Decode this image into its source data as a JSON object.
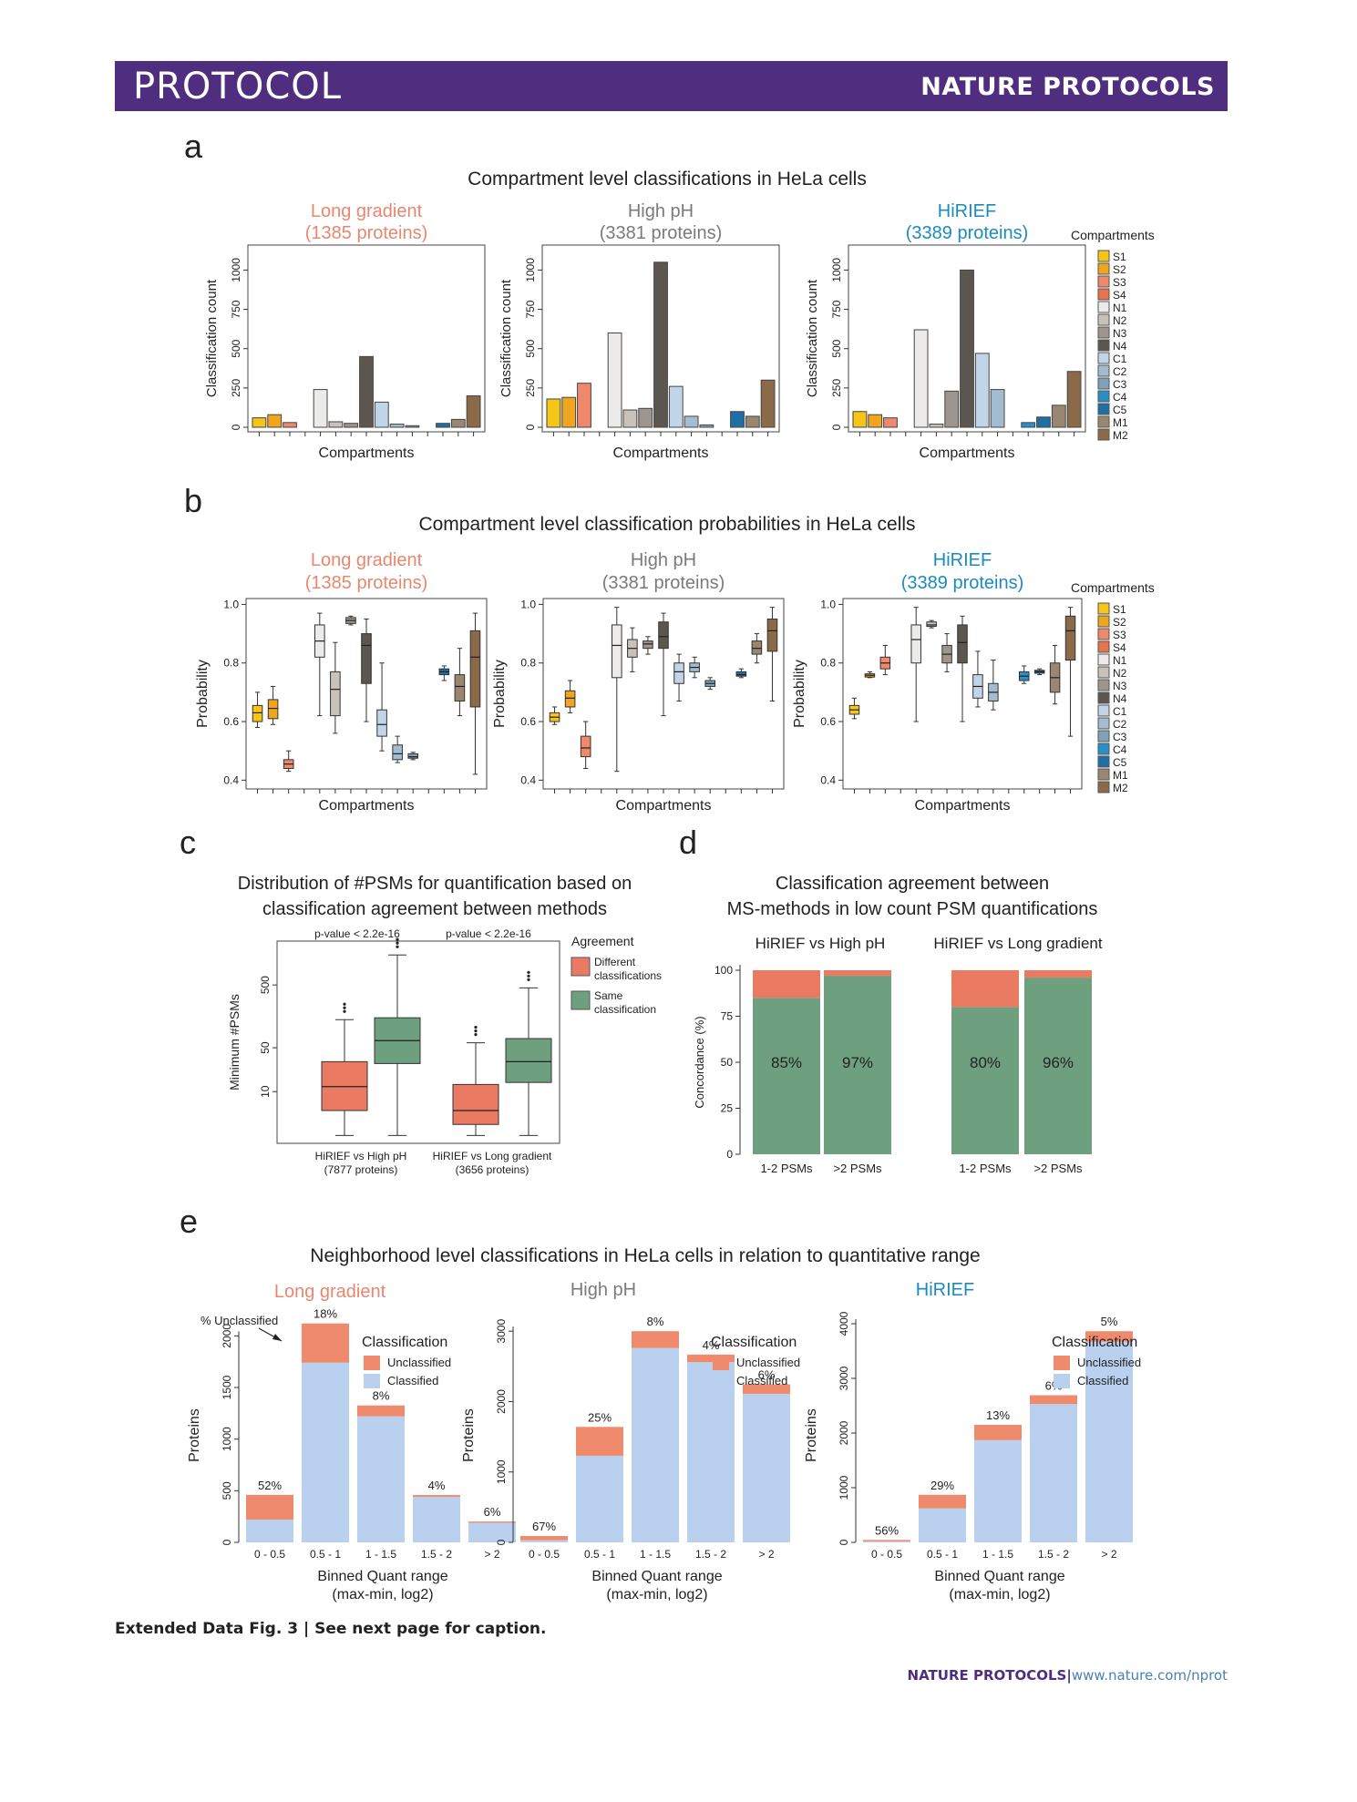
{
  "header": {
    "left": "PROTOCOL",
    "right": "NATURE PROTOCOLS"
  },
  "colors": {
    "purple": "#4f2d7f",
    "salmon": "#e8876e",
    "teal": "#1b8bbf",
    "grey": "#7a7a7a",
    "unclassified": "#ef8a6d",
    "classified": "#b9d0ee",
    "green": "#6e9f7f",
    "red": "#eb7a63"
  },
  "compartments": {
    "legend_title": "Compartments",
    "names": [
      "S1",
      "S2",
      "S3",
      "S4",
      "N1",
      "N2",
      "N3",
      "N4",
      "C1",
      "C2",
      "C3",
      "C4",
      "C5",
      "M1",
      "M2"
    ],
    "colors": [
      "#f5c518",
      "#f0a51e",
      "#ee8a6b",
      "#e8734f",
      "#ecebea",
      "#c9c2bb",
      "#9d958e",
      "#5c5651",
      "#c2d5e8",
      "#a4bcd0",
      "#7fa2b8",
      "#2a8fc8",
      "#1f6fa6",
      "#9b8672",
      "#8a6a49"
    ]
  },
  "panel_a": {
    "letter": "a",
    "title": "Compartment level classifications in HeLa cells",
    "xlabel": "Compartments",
    "ylabel": "Classification count",
    "ticks": [
      "0",
      "250",
      "500",
      "750",
      "1000"
    ]
  },
  "panel_b": {
    "letter": "b",
    "title": "Compartment level classification probabilities in HeLa cells",
    "xlabel": "Compartments",
    "ylabel": "Probability"
  },
  "panel_c": {
    "letter": "c",
    "title_line1": "Distribution of #PSMs for quantification based on",
    "title_line2": "classification agreement between methods",
    "ylabel": "Minimum #PSMs",
    "ticks": [
      "10",
      "50",
      "500"
    ],
    "pvalues": [
      "p-value < 2.2e-16",
      "p-value < 2.2e-16"
    ],
    "groups": [
      {
        "label": "HiRIEF vs High pH",
        "sub": "(7877 proteins)"
      },
      {
        "label": "HiRIEF vs Long gradient",
        "sub": "(3656 proteins)"
      }
    ],
    "legend_title": "Agreement",
    "legend": [
      {
        "line1": "Different",
        "line2": "classifications"
      },
      {
        "line1": "Same",
        "line2": "classification"
      }
    ]
  },
  "panel_d": {
    "letter": "d",
    "title_line1": "Classification agreement between",
    "title_line2": "MS-methods in low count PSM quantifications",
    "ylabel": "Concordance (%)",
    "ticks": [
      "0",
      "25",
      "50",
      "75",
      "100"
    ],
    "group_titles": [
      "HiRIEF vs High pH",
      "HiRIEF vs Long gradient"
    ],
    "xlabels": [
      "1-2 PSMs",
      ">2 PSMs",
      "1-2 PSMs",
      ">2 PSMs"
    ]
  },
  "panel_e": {
    "letter": "e",
    "title": "Neighborhood level classifications in HeLa cells in relation to quantitative range",
    "xlabel_line1": "Binned Quant range",
    "xlabel_line2": "(max-min, log2)",
    "ylabel": "Proteins",
    "pct_unclassified": "% Unclassified",
    "legend_title": "Classification",
    "legend": [
      "Unclassified",
      "Classified"
    ],
    "bins": [
      "0 - 0.5",
      "0.5 - 1",
      "1 - 1.5",
      "1.5 - 2",
      "> 2"
    ]
  },
  "chart_data": [
    {
      "type": "bar",
      "panel": "a",
      "title": "Long gradient",
      "subtitle": "(1385 proteins)",
      "categories": [
        "S1",
        "S2",
        "S3",
        "S4",
        "N1",
        "N2",
        "N3",
        "N4",
        "C1",
        "C2",
        "C3",
        "C4",
        "C5",
        "M1",
        "M2"
      ],
      "values": [
        60,
        80,
        30,
        0,
        240,
        35,
        25,
        450,
        160,
        20,
        10,
        0,
        25,
        50,
        200
      ],
      "ylim": [
        0,
        1130
      ]
    },
    {
      "type": "bar",
      "panel": "a",
      "title": "High pH",
      "subtitle": "(3381 proteins)",
      "categories": [
        "S1",
        "S2",
        "S3",
        "S4",
        "N1",
        "N2",
        "N3",
        "N4",
        "C1",
        "C2",
        "C3",
        "C4",
        "C5",
        "M1",
        "M2"
      ],
      "values": [
        180,
        190,
        280,
        0,
        600,
        110,
        120,
        1050,
        260,
        70,
        15,
        0,
        100,
        70,
        300
      ],
      "ylim": [
        0,
        1130
      ]
    },
    {
      "type": "bar",
      "panel": "a",
      "title": "HiRIEF",
      "subtitle": "(3389 proteins)",
      "categories": [
        "S1",
        "S2",
        "S3",
        "S4",
        "N1",
        "N2",
        "N3",
        "N4",
        "C1",
        "C2",
        "C3",
        "C4",
        "C5",
        "M1",
        "M2"
      ],
      "values": [
        100,
        80,
        60,
        0,
        620,
        20,
        230,
        1000,
        470,
        240,
        0,
        30,
        65,
        140,
        355
      ],
      "ylim": [
        0,
        1130
      ]
    },
    {
      "type": "boxplot",
      "panel": "b",
      "title": "Long gradient",
      "subtitle": "(1385 proteins)",
      "categories": [
        "S1",
        "S2",
        "S3",
        "S4",
        "N1",
        "N2",
        "N3",
        "N4",
        "C1",
        "C2",
        "C3",
        "C4",
        "C5",
        "M1",
        "M2"
      ],
      "ylim": [
        0.37,
        1.02
      ],
      "yticks": [
        0.4,
        0.6,
        0.8,
        1.0
      ],
      "boxes": [
        {
          "min": 0.58,
          "q1": 0.6,
          "med": 0.63,
          "q3": 0.655,
          "max": 0.7
        },
        {
          "min": 0.59,
          "q1": 0.61,
          "med": 0.645,
          "q3": 0.675,
          "max": 0.72
        },
        {
          "min": 0.43,
          "q1": 0.44,
          "med": 0.455,
          "q3": 0.47,
          "max": 0.5
        },
        null,
        {
          "min": 0.62,
          "q1": 0.82,
          "med": 0.875,
          "q3": 0.93,
          "max": 0.97
        },
        {
          "min": 0.56,
          "q1": 0.62,
          "med": 0.71,
          "q3": 0.77,
          "max": 0.87
        },
        {
          "min": 0.93,
          "q1": 0.935,
          "med": 0.945,
          "q3": 0.955,
          "max": 0.96
        },
        {
          "min": 0.6,
          "q1": 0.73,
          "med": 0.86,
          "q3": 0.9,
          "max": 0.95
        },
        {
          "min": 0.5,
          "q1": 0.55,
          "med": 0.59,
          "q3": 0.64,
          "max": 0.8
        },
        {
          "min": 0.46,
          "q1": 0.47,
          "med": 0.49,
          "q3": 0.52,
          "max": 0.55
        },
        {
          "min": 0.47,
          "q1": 0.475,
          "med": 0.48,
          "q3": 0.49,
          "max": 0.495
        },
        null,
        {
          "min": 0.74,
          "q1": 0.76,
          "med": 0.77,
          "q3": 0.78,
          "max": 0.79
        },
        {
          "min": 0.62,
          "q1": 0.67,
          "med": 0.72,
          "q3": 0.76,
          "max": 0.85
        },
        {
          "min": 0.42,
          "q1": 0.65,
          "med": 0.82,
          "q3": 0.91,
          "max": 0.97
        }
      ]
    },
    {
      "type": "boxplot",
      "panel": "b",
      "title": "High pH",
      "subtitle": "(3381 proteins)",
      "categories": [
        "S1",
        "S2",
        "S3",
        "S4",
        "N1",
        "N2",
        "N3",
        "N4",
        "C1",
        "C2",
        "C3",
        "C4",
        "C5",
        "M1",
        "M2"
      ],
      "ylim": [
        0.37,
        1.02
      ],
      "yticks": [
        0.4,
        0.6,
        0.8,
        1.0
      ],
      "boxes": [
        {
          "min": 0.59,
          "q1": 0.6,
          "med": 0.615,
          "q3": 0.63,
          "max": 0.65
        },
        {
          "min": 0.63,
          "q1": 0.65,
          "med": 0.68,
          "q3": 0.705,
          "max": 0.74
        },
        {
          "min": 0.44,
          "q1": 0.48,
          "med": 0.51,
          "q3": 0.55,
          "max": 0.6
        },
        null,
        {
          "min": 0.43,
          "q1": 0.75,
          "med": 0.86,
          "q3": 0.93,
          "max": 0.99
        },
        {
          "min": 0.77,
          "q1": 0.82,
          "med": 0.85,
          "q3": 0.88,
          "max": 0.92
        },
        {
          "min": 0.83,
          "q1": 0.85,
          "med": 0.865,
          "q3": 0.875,
          "max": 0.89
        },
        {
          "min": 0.62,
          "q1": 0.85,
          "med": 0.89,
          "q3": 0.94,
          "max": 0.97
        },
        {
          "min": 0.67,
          "q1": 0.73,
          "med": 0.77,
          "q3": 0.8,
          "max": 0.83
        },
        {
          "min": 0.75,
          "q1": 0.77,
          "med": 0.785,
          "q3": 0.8,
          "max": 0.82
        },
        {
          "min": 0.71,
          "q1": 0.72,
          "med": 0.73,
          "q3": 0.74,
          "max": 0.75
        },
        null,
        {
          "min": 0.75,
          "q1": 0.755,
          "med": 0.76,
          "q3": 0.77,
          "max": 0.78
        },
        {
          "min": 0.8,
          "q1": 0.83,
          "med": 0.85,
          "q3": 0.875,
          "max": 0.9
        },
        {
          "min": 0.67,
          "q1": 0.84,
          "med": 0.91,
          "q3": 0.95,
          "max": 0.99
        }
      ]
    },
    {
      "type": "boxplot",
      "panel": "b",
      "title": "HiRIEF",
      "subtitle": "(3389 proteins)",
      "categories": [
        "S1",
        "S2",
        "S3",
        "S4",
        "N1",
        "N2",
        "N3",
        "N4",
        "C1",
        "C2",
        "C3",
        "C4",
        "C5",
        "M1",
        "M2"
      ],
      "ylim": [
        0.37,
        1.02
      ],
      "yticks": [
        0.4,
        0.6,
        0.8,
        1.0
      ],
      "boxes": [
        {
          "min": 0.61,
          "q1": 0.625,
          "med": 0.64,
          "q3": 0.655,
          "max": 0.68
        },
        {
          "min": 0.75,
          "q1": 0.752,
          "med": 0.758,
          "q3": 0.763,
          "max": 0.77
        },
        {
          "min": 0.76,
          "q1": 0.78,
          "med": 0.8,
          "q3": 0.82,
          "max": 0.86
        },
        null,
        {
          "min": 0.6,
          "q1": 0.8,
          "med": 0.88,
          "q3": 0.93,
          "max": 0.99
        },
        {
          "min": 0.92,
          "q1": 0.925,
          "med": 0.93,
          "q3": 0.94,
          "max": 0.945
        },
        {
          "min": 0.77,
          "q1": 0.8,
          "med": 0.83,
          "q3": 0.86,
          "max": 0.9
        },
        {
          "min": 0.6,
          "q1": 0.8,
          "med": 0.87,
          "q3": 0.93,
          "max": 0.96
        },
        {
          "min": 0.65,
          "q1": 0.68,
          "med": 0.72,
          "q3": 0.76,
          "max": 0.84
        },
        {
          "min": 0.64,
          "q1": 0.67,
          "med": 0.7,
          "q3": 0.73,
          "max": 0.81
        },
        null,
        {
          "min": 0.73,
          "q1": 0.74,
          "med": 0.755,
          "q3": 0.77,
          "max": 0.79
        },
        {
          "min": 0.76,
          "q1": 0.765,
          "med": 0.77,
          "q3": 0.775,
          "max": 0.78
        },
        {
          "min": 0.66,
          "q1": 0.7,
          "med": 0.75,
          "q3": 0.8,
          "max": 0.86
        },
        {
          "min": 0.55,
          "q1": 0.81,
          "med": 0.91,
          "q3": 0.96,
          "max": 0.99
        }
      ]
    },
    {
      "type": "boxplot",
      "panel": "c",
      "yscale": "log",
      "categories": [
        "HiRIEF vs High pH",
        "HiRIEF vs Long gradient"
      ],
      "series": [
        {
          "name": "Different classifications",
          "boxes": [
            {
              "min": 2,
              "q1": 5,
              "med": 12,
              "q3": 30,
              "max": 140
            },
            {
              "min": 2,
              "q1": 3,
              "med": 5,
              "q3": 13,
              "max": 60
            }
          ]
        },
        {
          "name": "Same classification",
          "boxes": [
            {
              "min": 2,
              "q1": 28,
              "med": 65,
              "q3": 150,
              "max": 1500
            },
            {
              "min": 2,
              "q1": 14,
              "med": 30,
              "q3": 70,
              "max": 450
            }
          ]
        }
      ]
    },
    {
      "type": "bar",
      "panel": "d",
      "stacked": true,
      "categories": [
        "1-2 PSMs",
        ">2 PSMs",
        "1-2 PSMs",
        ">2 PSMs"
      ],
      "groups": [
        "HiRIEF vs High pH",
        "HiRIEF vs High pH",
        "HiRIEF vs Long gradient",
        "HiRIEF vs Long gradient"
      ],
      "series": [
        {
          "name": "Same classification",
          "values": [
            85,
            97,
            80,
            96
          ]
        },
        {
          "name": "Different classifications",
          "values": [
            15,
            3,
            20,
            4
          ]
        }
      ],
      "labels": [
        "85%",
        "97%",
        "80%",
        "96%"
      ],
      "ylim": [
        0,
        100
      ]
    },
    {
      "type": "bar",
      "panel": "e",
      "stacked": true,
      "title": "Long gradient",
      "categories": [
        "0 - 0.5",
        "0.5 - 1",
        "1 - 1.5",
        "1.5 - 2",
        "> 2"
      ],
      "series": [
        {
          "name": "Classified",
          "values": [
            220,
            1740,
            1220,
            440,
            190
          ]
        },
        {
          "name": "Unclassified",
          "values": [
            240,
            380,
            106,
            18,
            12
          ]
        }
      ],
      "labels": [
        "52%",
        "18%",
        "8%",
        "4%",
        "6%"
      ],
      "ylim": [
        0,
        2250
      ],
      "yticks": [
        0,
        500,
        1000,
        1500,
        2000
      ]
    },
    {
      "type": "bar",
      "panel": "e",
      "stacked": true,
      "title": "High pH",
      "categories": [
        "0 - 0.5",
        "0.5 - 1",
        "1 - 1.5",
        "1.5 - 2",
        "> 2"
      ],
      "series": [
        {
          "name": "Classified",
          "values": [
            30,
            1230,
            2760,
            2560,
            2110
          ]
        },
        {
          "name": "Unclassified",
          "values": [
            60,
            410,
            240,
            107,
            135
          ]
        }
      ],
      "labels": [
        "67%",
        "25%",
        "8%",
        "4%",
        "6%"
      ],
      "ylim": [
        0,
        3300
      ],
      "yticks": [
        0,
        1000,
        2000,
        3000
      ]
    },
    {
      "type": "bar",
      "panel": "e",
      "stacked": true,
      "title": "HiRIEF",
      "categories": [
        "0 - 0.5",
        "0.5 - 1",
        "1 - 1.5",
        "1.5 - 2",
        "> 2"
      ],
      "series": [
        {
          "name": "Classified",
          "values": [
            20,
            620,
            1870,
            2530,
            3670
          ]
        },
        {
          "name": "Unclassified",
          "values": [
            25,
            250,
            280,
            162,
            193
          ]
        }
      ],
      "labels": [
        "56%",
        "29%",
        "13%",
        "6%",
        "5%"
      ],
      "ylim": [
        0,
        4250
      ],
      "yticks": [
        0,
        1000,
        2000,
        3000,
        4000
      ]
    }
  ],
  "caption": {
    "bold": "Extended Data Fig. 3 | See next page for caption."
  },
  "footer": {
    "journal": "NATURE PROTOCOLS",
    "sep": "|",
    "url": "www.nature.com/nprot"
  }
}
